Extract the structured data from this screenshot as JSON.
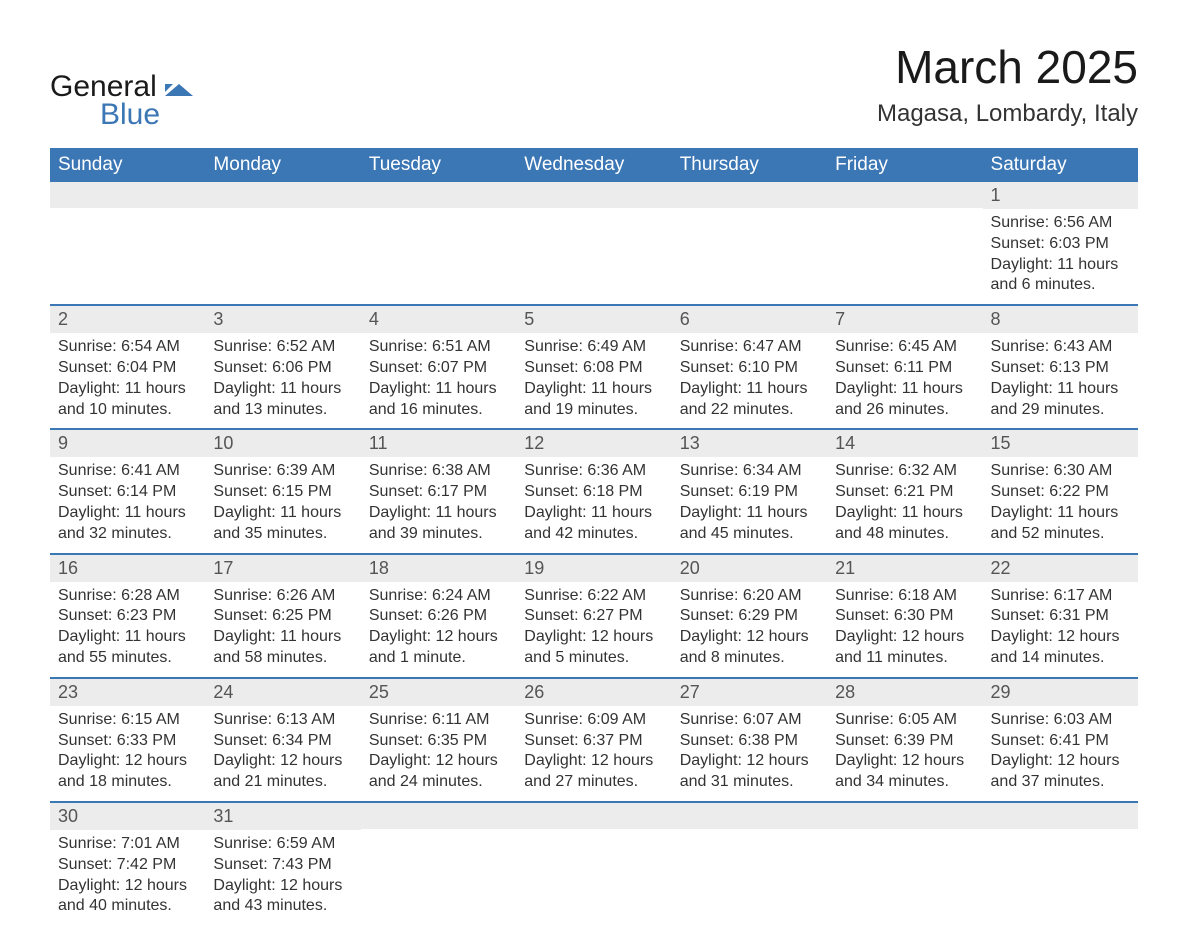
{
  "logo": {
    "general": "General",
    "blue": "Blue"
  },
  "title": "March 2025",
  "location": "Magasa, Lombardy, Italy",
  "colors": {
    "header_bg": "#3b76b5",
    "header_text": "#ffffff",
    "daynum_bg": "#ececec",
    "border": "#3b76b5",
    "body_text": "#333333"
  },
  "weekdays": [
    "Sunday",
    "Monday",
    "Tuesday",
    "Wednesday",
    "Thursday",
    "Friday",
    "Saturday"
  ],
  "weeks": [
    [
      {
        "day": "",
        "lines": []
      },
      {
        "day": "",
        "lines": []
      },
      {
        "day": "",
        "lines": []
      },
      {
        "day": "",
        "lines": []
      },
      {
        "day": "",
        "lines": []
      },
      {
        "day": "",
        "lines": []
      },
      {
        "day": "1",
        "lines": [
          "Sunrise: 6:56 AM",
          "Sunset: 6:03 PM",
          "Daylight: 11 hours and 6 minutes."
        ]
      }
    ],
    [
      {
        "day": "2",
        "lines": [
          "Sunrise: 6:54 AM",
          "Sunset: 6:04 PM",
          "Daylight: 11 hours and 10 minutes."
        ]
      },
      {
        "day": "3",
        "lines": [
          "Sunrise: 6:52 AM",
          "Sunset: 6:06 PM",
          "Daylight: 11 hours and 13 minutes."
        ]
      },
      {
        "day": "4",
        "lines": [
          "Sunrise: 6:51 AM",
          "Sunset: 6:07 PM",
          "Daylight: 11 hours and 16 minutes."
        ]
      },
      {
        "day": "5",
        "lines": [
          "Sunrise: 6:49 AM",
          "Sunset: 6:08 PM",
          "Daylight: 11 hours and 19 minutes."
        ]
      },
      {
        "day": "6",
        "lines": [
          "Sunrise: 6:47 AM",
          "Sunset: 6:10 PM",
          "Daylight: 11 hours and 22 minutes."
        ]
      },
      {
        "day": "7",
        "lines": [
          "Sunrise: 6:45 AM",
          "Sunset: 6:11 PM",
          "Daylight: 11 hours and 26 minutes."
        ]
      },
      {
        "day": "8",
        "lines": [
          "Sunrise: 6:43 AM",
          "Sunset: 6:13 PM",
          "Daylight: 11 hours and 29 minutes."
        ]
      }
    ],
    [
      {
        "day": "9",
        "lines": [
          "Sunrise: 6:41 AM",
          "Sunset: 6:14 PM",
          "Daylight: 11 hours and 32 minutes."
        ]
      },
      {
        "day": "10",
        "lines": [
          "Sunrise: 6:39 AM",
          "Sunset: 6:15 PM",
          "Daylight: 11 hours and 35 minutes."
        ]
      },
      {
        "day": "11",
        "lines": [
          "Sunrise: 6:38 AM",
          "Sunset: 6:17 PM",
          "Daylight: 11 hours and 39 minutes."
        ]
      },
      {
        "day": "12",
        "lines": [
          "Sunrise: 6:36 AM",
          "Sunset: 6:18 PM",
          "Daylight: 11 hours and 42 minutes."
        ]
      },
      {
        "day": "13",
        "lines": [
          "Sunrise: 6:34 AM",
          "Sunset: 6:19 PM",
          "Daylight: 11 hours and 45 minutes."
        ]
      },
      {
        "day": "14",
        "lines": [
          "Sunrise: 6:32 AM",
          "Sunset: 6:21 PM",
          "Daylight: 11 hours and 48 minutes."
        ]
      },
      {
        "day": "15",
        "lines": [
          "Sunrise: 6:30 AM",
          "Sunset: 6:22 PM",
          "Daylight: 11 hours and 52 minutes."
        ]
      }
    ],
    [
      {
        "day": "16",
        "lines": [
          "Sunrise: 6:28 AM",
          "Sunset: 6:23 PM",
          "Daylight: 11 hours and 55 minutes."
        ]
      },
      {
        "day": "17",
        "lines": [
          "Sunrise: 6:26 AM",
          "Sunset: 6:25 PM",
          "Daylight: 11 hours and 58 minutes."
        ]
      },
      {
        "day": "18",
        "lines": [
          "Sunrise: 6:24 AM",
          "Sunset: 6:26 PM",
          "Daylight: 12 hours and 1 minute."
        ]
      },
      {
        "day": "19",
        "lines": [
          "Sunrise: 6:22 AM",
          "Sunset: 6:27 PM",
          "Daylight: 12 hours and 5 minutes."
        ]
      },
      {
        "day": "20",
        "lines": [
          "Sunrise: 6:20 AM",
          "Sunset: 6:29 PM",
          "Daylight: 12 hours and 8 minutes."
        ]
      },
      {
        "day": "21",
        "lines": [
          "Sunrise: 6:18 AM",
          "Sunset: 6:30 PM",
          "Daylight: 12 hours and 11 minutes."
        ]
      },
      {
        "day": "22",
        "lines": [
          "Sunrise: 6:17 AM",
          "Sunset: 6:31 PM",
          "Daylight: 12 hours and 14 minutes."
        ]
      }
    ],
    [
      {
        "day": "23",
        "lines": [
          "Sunrise: 6:15 AM",
          "Sunset: 6:33 PM",
          "Daylight: 12 hours and 18 minutes."
        ]
      },
      {
        "day": "24",
        "lines": [
          "Sunrise: 6:13 AM",
          "Sunset: 6:34 PM",
          "Daylight: 12 hours and 21 minutes."
        ]
      },
      {
        "day": "25",
        "lines": [
          "Sunrise: 6:11 AM",
          "Sunset: 6:35 PM",
          "Daylight: 12 hours and 24 minutes."
        ]
      },
      {
        "day": "26",
        "lines": [
          "Sunrise: 6:09 AM",
          "Sunset: 6:37 PM",
          "Daylight: 12 hours and 27 minutes."
        ]
      },
      {
        "day": "27",
        "lines": [
          "Sunrise: 6:07 AM",
          "Sunset: 6:38 PM",
          "Daylight: 12 hours and 31 minutes."
        ]
      },
      {
        "day": "28",
        "lines": [
          "Sunrise: 6:05 AM",
          "Sunset: 6:39 PM",
          "Daylight: 12 hours and 34 minutes."
        ]
      },
      {
        "day": "29",
        "lines": [
          "Sunrise: 6:03 AM",
          "Sunset: 6:41 PM",
          "Daylight: 12 hours and 37 minutes."
        ]
      }
    ],
    [
      {
        "day": "30",
        "lines": [
          "Sunrise: 7:01 AM",
          "Sunset: 7:42 PM",
          "Daylight: 12 hours and 40 minutes."
        ]
      },
      {
        "day": "31",
        "lines": [
          "Sunrise: 6:59 AM",
          "Sunset: 7:43 PM",
          "Daylight: 12 hours and 43 minutes."
        ]
      },
      {
        "day": "",
        "lines": []
      },
      {
        "day": "",
        "lines": []
      },
      {
        "day": "",
        "lines": []
      },
      {
        "day": "",
        "lines": []
      },
      {
        "day": "",
        "lines": []
      }
    ]
  ]
}
